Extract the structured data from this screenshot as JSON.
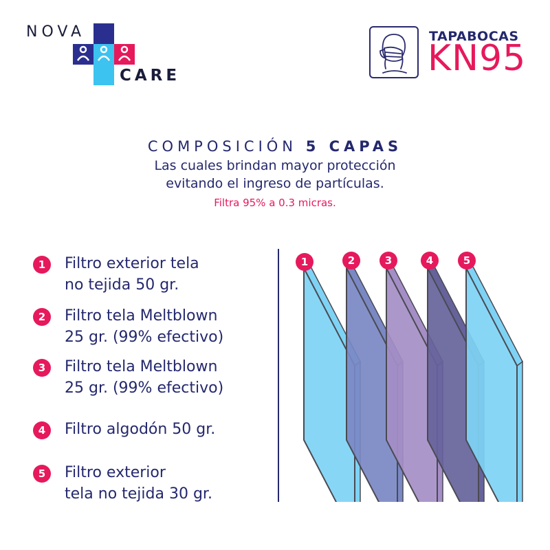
{
  "logo": {
    "word_top": "NOVA",
    "word_bottom": "CARE",
    "colors": {
      "navy": "#2a2f8f",
      "pink": "#e6195c",
      "cyan": "#3cc3f0"
    }
  },
  "badge": {
    "icon": "face-mask-icon",
    "title": "TAPABOCAS",
    "model": "KN95"
  },
  "heading": {
    "title_light": "COMPOSICIÓN",
    "title_bold": "5 CAPAS",
    "line1": "Las cuales brindan mayor protección",
    "line2": "evitando el ingreso de partículas.",
    "accent": "Filtra 95% a 0.3 micras."
  },
  "layers": [
    {
      "num": "1",
      "line1": "Filtro exterior tela",
      "line2": "no tejida 50 gr.",
      "color": "#7ed3f5"
    },
    {
      "num": "2",
      "line1": "Filtro tela Meltblown",
      "line2": "25 gr. (99% efectivo)",
      "color": "#7a88c4"
    },
    {
      "num": "3",
      "line1": "Filtro tela Meltblown",
      "line2": "25 gr. (99% efectivo)",
      "color": "#a58ec6"
    },
    {
      "num": "4",
      "line1": "Filtro algodón 50 gr.",
      "line2": "",
      "color": "#66639b"
    },
    {
      "num": "5",
      "line1": "Filtro exterior",
      "line2": "tela no tejida 30 gr.",
      "color": "#7ed3f5"
    }
  ],
  "colors": {
    "navy": "#24286d",
    "pink": "#e6195c"
  }
}
